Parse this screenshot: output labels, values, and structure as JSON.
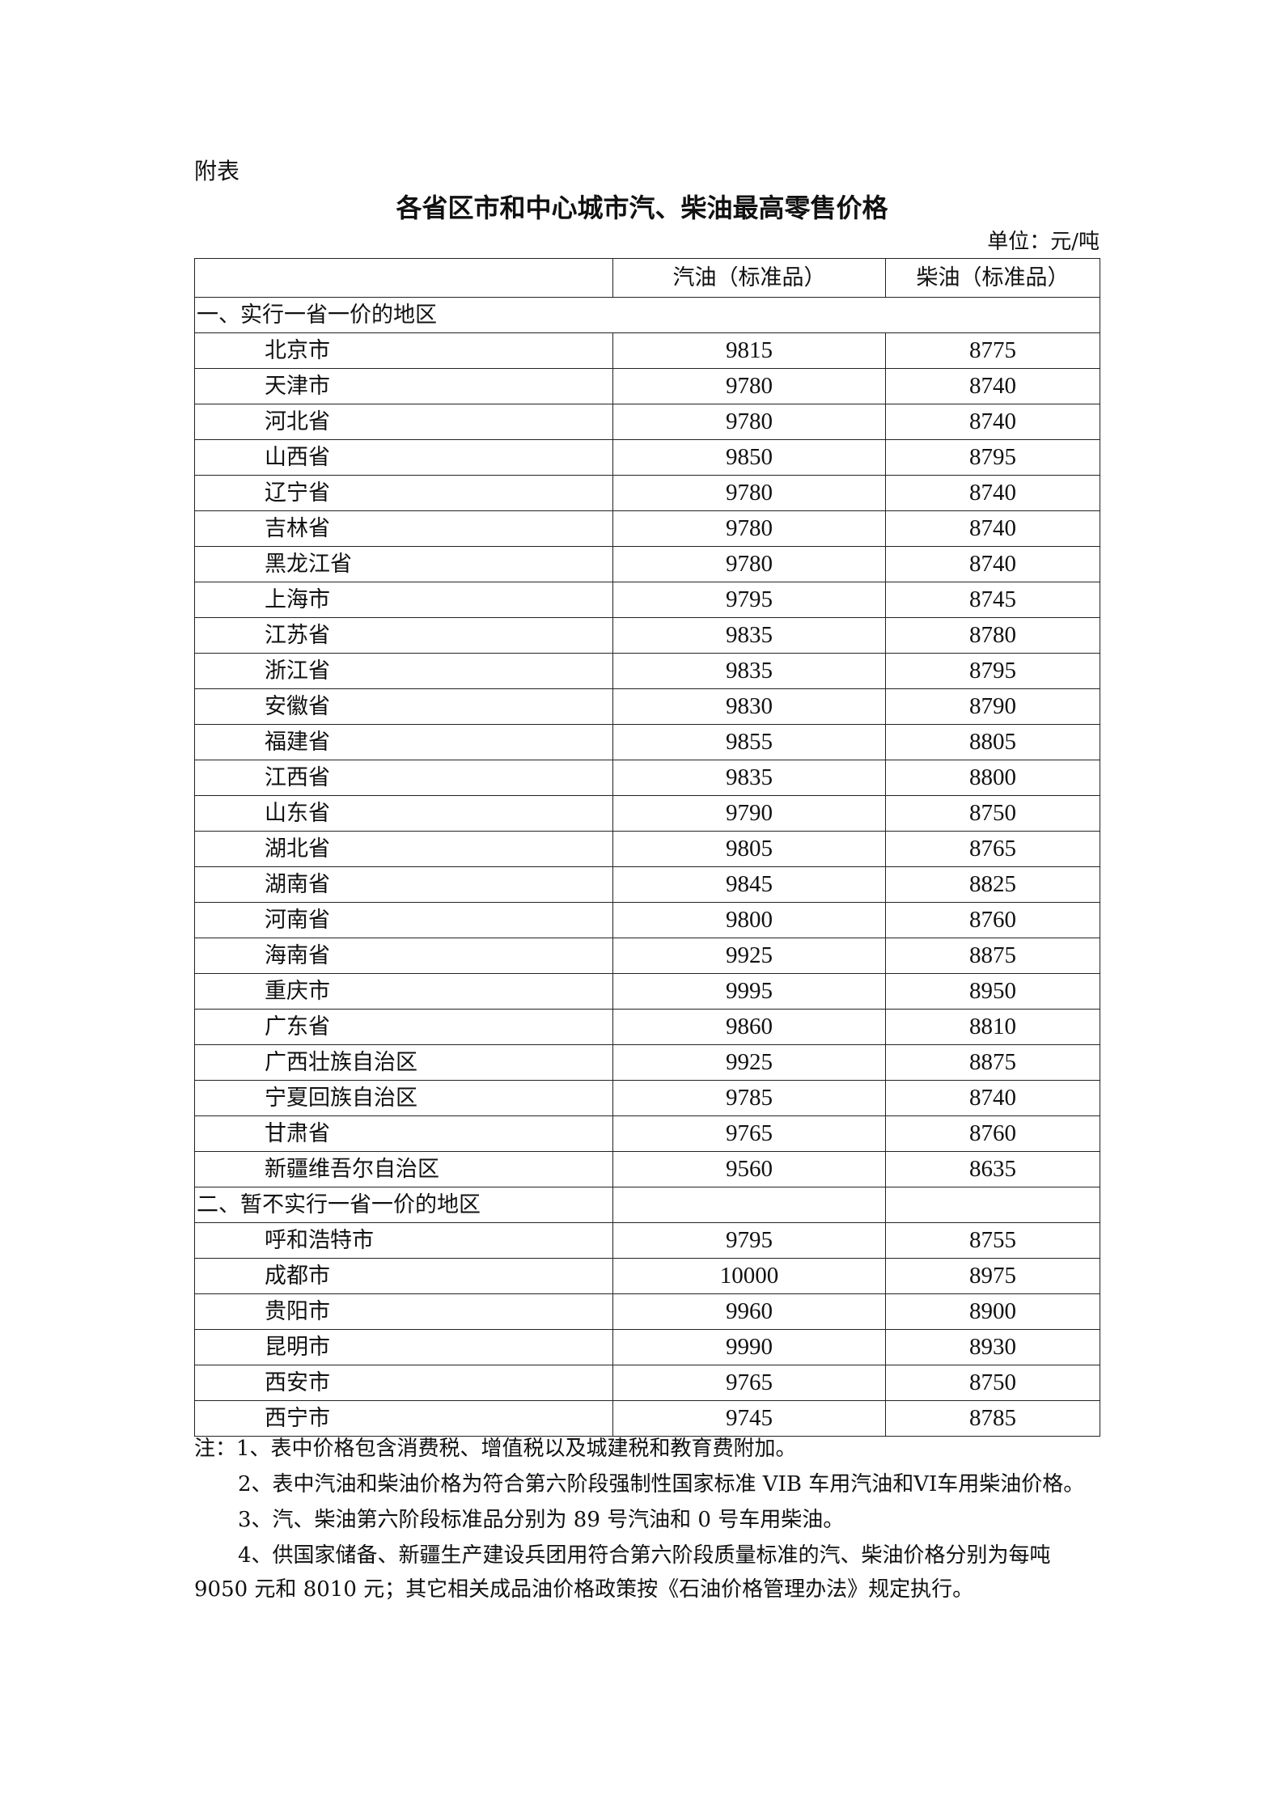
{
  "doc": {
    "label": "附表",
    "title": "各省区市和中心城市汽、柴油最高零售价格",
    "unit": "单位：元/吨"
  },
  "table": {
    "headers": [
      "",
      "汽油（标准品）",
      "柴油（标准品）"
    ],
    "section1": {
      "title": "一、实行一省一价的地区",
      "rows": [
        {
          "region": "北京市",
          "gasoline": "9815",
          "diesel": "8775"
        },
        {
          "region": "天津市",
          "gasoline": "9780",
          "diesel": "8740"
        },
        {
          "region": "河北省",
          "gasoline": "9780",
          "diesel": "8740"
        },
        {
          "region": "山西省",
          "gasoline": "9850",
          "diesel": "8795"
        },
        {
          "region": "辽宁省",
          "gasoline": "9780",
          "diesel": "8740"
        },
        {
          "region": "吉林省",
          "gasoline": "9780",
          "diesel": "8740"
        },
        {
          "region": "黑龙江省",
          "gasoline": "9780",
          "diesel": "8740"
        },
        {
          "region": "上海市",
          "gasoline": "9795",
          "diesel": "8745"
        },
        {
          "region": "江苏省",
          "gasoline": "9835",
          "diesel": "8780"
        },
        {
          "region": "浙江省",
          "gasoline": "9835",
          "diesel": "8795"
        },
        {
          "region": "安徽省",
          "gasoline": "9830",
          "diesel": "8790"
        },
        {
          "region": "福建省",
          "gasoline": "9855",
          "diesel": "8805"
        },
        {
          "region": "江西省",
          "gasoline": "9835",
          "diesel": "8800"
        },
        {
          "region": "山东省",
          "gasoline": "9790",
          "diesel": "8750"
        },
        {
          "region": "湖北省",
          "gasoline": "9805",
          "diesel": "8765"
        },
        {
          "region": "湖南省",
          "gasoline": "9845",
          "diesel": "8825"
        },
        {
          "region": "河南省",
          "gasoline": "9800",
          "diesel": "8760"
        },
        {
          "region": "海南省",
          "gasoline": "9925",
          "diesel": "8875"
        },
        {
          "region": "重庆市",
          "gasoline": "9995",
          "diesel": "8950"
        },
        {
          "region": "广东省",
          "gasoline": "9860",
          "diesel": "8810"
        },
        {
          "region": "广西壮族自治区",
          "gasoline": "9925",
          "diesel": "8875"
        },
        {
          "region": "宁夏回族自治区",
          "gasoline": "9785",
          "diesel": "8740"
        },
        {
          "region": "甘肃省",
          "gasoline": "9765",
          "diesel": "8760"
        },
        {
          "region": "新疆维吾尔自治区",
          "gasoline": "9560",
          "diesel": "8635"
        }
      ]
    },
    "section2": {
      "title": "二、暂不实行一省一价的地区",
      "rows": [
        {
          "region": "呼和浩特市",
          "gasoline": "9795",
          "diesel": "8755"
        },
        {
          "region": "成都市",
          "gasoline": "10000",
          "diesel": "8975"
        },
        {
          "region": "贵阳市",
          "gasoline": "9960",
          "diesel": "8900"
        },
        {
          "region": "昆明市",
          "gasoline": "9990",
          "diesel": "8930"
        },
        {
          "region": "西安市",
          "gasoline": "9765",
          "diesel": "8750"
        },
        {
          "region": "西宁市",
          "gasoline": "9745",
          "diesel": "8785"
        }
      ]
    }
  },
  "notes": [
    "注：1、表中价格包含消费税、增值税以及城建税和教育费附加。",
    "2、表中汽油和柴油价格为符合第六阶段强制性国家标准 VIB 车用汽油和VI车用柴油价格。",
    "3、汽、柴油第六阶段标准品分别为 89 号汽油和 0 号车用柴油。",
    "4、供国家储备、新疆生产建设兵团用符合第六阶段质量标准的汽、柴油价格分别为每吨 9050 元和 8010 元；其它相关成品油价格政策按《石油价格管理办法》规定执行。"
  ]
}
